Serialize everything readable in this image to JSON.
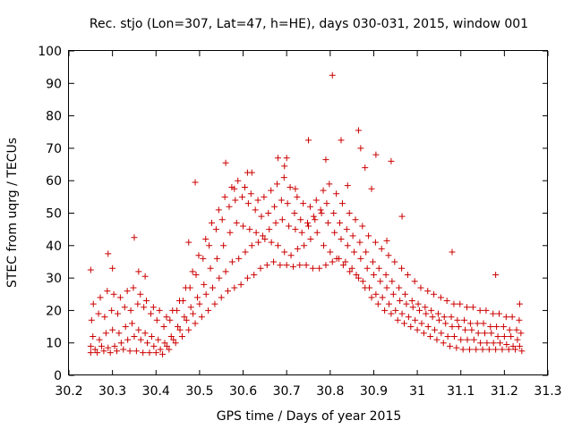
{
  "chart_data": {
    "type": "scatter",
    "title": "Rec. stjo (Lon=307, Lat=47, h=HE), days 030-031, 2015, window 001",
    "xlabel": "GPS time / Days of year 2015",
    "ylabel": "STEC from uqrg / TECUs",
    "xlim": [
      30.2,
      31.3
    ],
    "ylim": [
      0,
      100
    ],
    "xticks": [
      "30.2",
      "30.3",
      "30.4",
      "30.5",
      "30.6",
      "30.7",
      "30.8",
      "30.9",
      "31",
      "31.1",
      "31.2",
      "31.3"
    ],
    "yticks": [
      "0",
      "10",
      "20",
      "30",
      "40",
      "50",
      "60",
      "70",
      "80",
      "90",
      "100"
    ],
    "grid": false,
    "legend": "none",
    "marker": "plus",
    "color": "#cc0000",
    "series": [
      {
        "x": [
          30.25,
          30.265,
          30.28,
          30.295,
          30.31,
          30.325,
          30.34,
          30.355,
          30.37,
          30.385,
          30.4,
          30.415,
          30.43,
          30.445,
          30.46,
          30.475,
          30.49,
          30.505,
          30.52,
          30.535,
          30.55,
          30.565,
          30.58,
          30.595,
          30.61,
          30.625,
          30.64,
          30.655,
          30.67,
          30.685,
          30.7,
          30.715,
          30.73,
          30.745,
          30.76,
          30.775,
          30.79,
          30.805,
          30.82,
          30.835,
          30.85,
          30.865,
          30.88,
          30.895,
          30.91,
          30.925,
          30.94,
          30.955,
          30.97,
          30.985,
          31.0,
          31.015,
          31.03,
          31.045,
          31.06,
          31.075,
          31.09,
          31.105,
          31.12,
          31.135,
          31.15,
          31.165,
          31.18,
          31.195,
          31.21,
          31.225,
          31.24
        ],
        "y": [
          7,
          7,
          7.5,
          7,
          7.5,
          8,
          7.5,
          7.5,
          7,
          7,
          7,
          6.5,
          8,
          10,
          12,
          14,
          16,
          18,
          20,
          22,
          24,
          26,
          27,
          28,
          30,
          31,
          33,
          34,
          35,
          34,
          34,
          33.5,
          34,
          34,
          33,
          33,
          34,
          35,
          36,
          35,
          33,
          30,
          27,
          24,
          22,
          20,
          19,
          17,
          16,
          15,
          14,
          13,
          12,
          11,
          10,
          9,
          8.5,
          8,
          8,
          8,
          8,
          8,
          8,
          8,
          8,
          8,
          7.5
        ]
      },
      {
        "x": [
          30.25,
          30.26,
          30.275,
          30.29,
          30.305,
          30.32,
          30.335,
          30.35,
          30.365,
          30.38,
          30.395,
          30.41,
          30.425,
          30.44,
          30.455,
          30.47,
          30.485,
          30.5,
          30.515,
          30.53,
          30.545,
          30.56,
          30.575,
          30.59,
          30.605,
          30.62,
          30.635,
          30.65,
          30.665,
          30.68,
          30.695,
          30.71,
          30.725,
          30.74,
          30.755,
          30.77,
          30.785,
          30.8,
          30.815,
          30.83,
          30.845,
          30.86,
          30.875,
          30.89,
          30.905,
          30.92,
          30.935,
          30.95,
          30.965,
          30.98,
          30.995,
          31.01,
          31.025,
          31.04,
          31.055,
          31.07,
          31.085,
          31.1,
          31.115,
          31.13,
          31.145,
          31.16,
          31.175,
          31.19,
          31.205,
          31.22,
          31.235
        ],
        "y": [
          9,
          8,
          9,
          8.5,
          9,
          10,
          11,
          12,
          11,
          10,
          9,
          8,
          9,
          11,
          14,
          17,
          19,
          22,
          25,
          27,
          30,
          32,
          35,
          36,
          38,
          40,
          41,
          42,
          41,
          40,
          38,
          37,
          39,
          40,
          42,
          44,
          40,
          38,
          36,
          34,
          32,
          31,
          29,
          27,
          25,
          24,
          22,
          20,
          19,
          18,
          17,
          16,
          15,
          14,
          13,
          12,
          12,
          11,
          11,
          11,
          10,
          10,
          10,
          10,
          9.5,
          9,
          9
        ]
      },
      {
        "x": [
          30.255,
          30.27,
          30.285,
          30.3,
          30.315,
          30.33,
          30.345,
          30.36,
          30.375,
          30.39,
          30.405,
          30.42,
          30.435,
          30.45,
          30.465,
          30.48,
          30.495,
          30.51,
          30.525,
          30.54,
          30.555,
          30.57,
          30.585,
          30.6,
          30.615,
          30.63,
          30.645,
          30.66,
          30.675,
          30.69,
          30.705,
          30.72,
          30.735,
          30.75,
          30.765,
          30.78,
          30.795,
          30.81,
          30.825,
          30.84,
          30.855,
          30.87,
          30.885,
          30.9,
          30.915,
          30.93,
          30.945,
          30.96,
          30.975,
          30.99,
          31.005,
          31.02,
          31.035,
          31.05,
          31.065,
          31.08,
          31.095,
          31.11,
          31.125,
          31.14,
          31.155,
          31.17,
          31.185,
          31.2,
          31.215,
          31.23
        ],
        "y": [
          12,
          11,
          13,
          14,
          13,
          15,
          16,
          14,
          13,
          12,
          11,
          10,
          12,
          15,
          18,
          21,
          24,
          28,
          33,
          36,
          40,
          44,
          47,
          46,
          45,
          44,
          43,
          45,
          47,
          48,
          46,
          45,
          44,
          46,
          48,
          50,
          47,
          44,
          42,
          40,
          38,
          36,
          33,
          31,
          29,
          27,
          25,
          23,
          22,
          21,
          20,
          19,
          18,
          17,
          16,
          15,
          15,
          14,
          14,
          13,
          13,
          13,
          12,
          12,
          12,
          11
        ]
      },
      {
        "x": [
          30.252,
          30.268,
          30.282,
          30.298,
          30.312,
          30.328,
          30.342,
          30.358,
          30.372,
          30.388,
          30.402,
          30.418,
          30.432,
          30.448,
          30.462,
          30.478,
          30.492,
          30.508,
          30.522,
          30.538,
          30.552,
          30.568,
          30.582,
          30.598,
          30.612,
          30.628,
          30.642,
          30.658,
          30.672,
          30.688,
          30.702,
          30.718,
          30.732,
          30.748,
          30.762,
          30.778,
          30.792,
          30.808,
          30.822,
          30.838,
          30.852,
          30.868,
          30.882,
          30.898,
          30.912,
          30.928,
          30.942,
          30.958,
          30.972,
          30.988,
          31.002,
          31.018,
          31.032,
          31.048,
          31.062,
          31.078,
          31.092,
          31.108,
          31.122,
          31.138,
          31.152,
          31.168,
          31.182,
          31.198,
          31.212,
          31.228,
          31.238
        ],
        "y": [
          17,
          19,
          18,
          20,
          19,
          21,
          20,
          22,
          21,
          19,
          17,
          15,
          17,
          20,
          23,
          27,
          31,
          36,
          40,
          45,
          48,
          52,
          54,
          55,
          53,
          51,
          49,
          50,
          52,
          54,
          53,
          50,
          48,
          47,
          49,
          51,
          53,
          50,
          47,
          45,
          43,
          41,
          38,
          35,
          33,
          31,
          29,
          27,
          25,
          23,
          22,
          21,
          20,
          19,
          18,
          18,
          17,
          17,
          16,
          16,
          16,
          15,
          15,
          15,
          14,
          14,
          13
        ]
      },
      {
        "x": [
          30.256,
          30.272,
          30.288,
          30.303,
          30.318,
          30.334,
          30.348,
          30.364,
          30.378,
          30.394,
          30.408,
          30.424,
          30.438,
          30.454,
          30.468,
          30.484,
          30.498,
          30.514,
          30.528,
          30.544,
          30.558,
          30.574,
          30.588,
          30.604,
          30.618,
          30.634,
          30.648,
          30.664,
          30.678,
          30.694,
          30.708,
          30.724,
          30.738,
          30.754,
          30.768,
          30.784,
          30.798,
          30.814,
          30.828,
          30.844,
          30.858,
          30.874,
          30.888,
          30.904,
          30.918,
          30.934,
          30.948,
          30.964,
          30.978,
          30.994,
          31.008,
          31.024,
          31.038,
          31.054,
          31.068,
          31.084,
          31.098,
          31.114,
          31.128,
          31.144,
          31.158,
          31.174,
          31.188,
          31.204,
          31.218,
          31.234
        ],
        "y": [
          22,
          24,
          26,
          25,
          24,
          26,
          27,
          25,
          23,
          21,
          20,
          18,
          20,
          23,
          27,
          32,
          37,
          42,
          47,
          51,
          55,
          58,
          60,
          58,
          56,
          54,
          55,
          57,
          59,
          61,
          58,
          55,
          53,
          52,
          54,
          57,
          59,
          56,
          53,
          50,
          48,
          46,
          43,
          41,
          39,
          37,
          35,
          33,
          31,
          29,
          27,
          26,
          25,
          24,
          23,
          22,
          22,
          21,
          21,
          20,
          20,
          19,
          19,
          18,
          18,
          17
        ]
      },
      {
        "x": [
          30.25,
          30.29,
          30.3,
          30.35,
          30.36,
          30.375,
          30.475,
          30.49,
          30.56,
          30.58,
          30.61,
          30.62,
          30.68,
          30.695,
          30.7,
          30.72,
          30.75,
          30.79,
          30.805,
          30.825,
          30.84,
          30.865,
          30.87,
          30.88,
          30.895,
          30.905,
          30.93,
          30.94,
          30.965,
          31.08,
          31.18,
          31.235
        ],
        "y": [
          32.5,
          37.5,
          33,
          42.5,
          32,
          30.5,
          41,
          59.5,
          65.5,
          57.5,
          62.5,
          62.5,
          67,
          64.5,
          67,
          57.5,
          72.5,
          66.5,
          92.5,
          72.5,
          58.5,
          75.5,
          70,
          64,
          57.5,
          68,
          41.5,
          66,
          49,
          38,
          31,
          22
        ]
      }
    ]
  }
}
